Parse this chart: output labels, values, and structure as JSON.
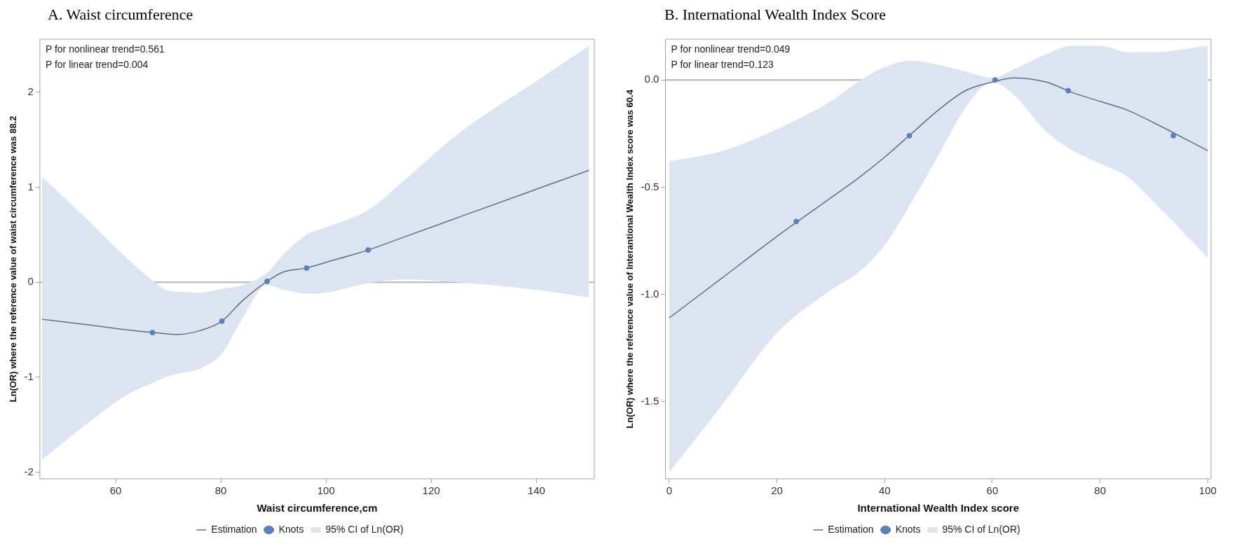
{
  "chart_data": [
    {
      "type": "line",
      "title": "A.  Waist circumference",
      "xlabel": "Waist circumference,cm",
      "ylabel": "Ln(OR) where the reference value of waist circumference was 88.2",
      "xlim": [
        45.6,
        151
      ],
      "ylim": [
        -2.07,
        2.56
      ],
      "xticks": [
        60,
        80,
        100,
        120,
        140
      ],
      "yticks": [
        -2,
        -1,
        0,
        1,
        2
      ],
      "grid": false,
      "legend": "bottom",
      "annotations": [
        "P for nonlinear trend=0.561",
        "P for linear trend=0.004"
      ],
      "ref_lines": [
        {
          "axis": "y",
          "value": 0,
          "color": "#b4b4b4"
        }
      ],
      "series": [
        {
          "name": "Estimation",
          "type": "line",
          "color": "#5f6f82",
          "marker": "none",
          "x": [
            46,
            55,
            62,
            67,
            70,
            72,
            76,
            80.2,
            84,
            88.8,
            92,
            96.3,
            100,
            108,
            115,
            125,
            140,
            150
          ],
          "values": [
            -0.39,
            -0.45,
            -0.5,
            -0.53,
            -0.545,
            -0.55,
            -0.51,
            -0.41,
            -0.2,
            0.01,
            0.11,
            0.15,
            0.21,
            0.34,
            0.48,
            0.68,
            0.98,
            1.18
          ],
          "upper": [
            1.11,
            0.64,
            0.26,
            0.02,
            -0.09,
            -0.1,
            -0.11,
            -0.07,
            -0.03,
            0.1,
            0.3,
            0.5,
            0.58,
            0.76,
            1.08,
            1.56,
            2.12,
            2.49
          ],
          "lower": [
            -1.87,
            -1.47,
            -1.19,
            -1.06,
            -0.99,
            -0.96,
            -0.91,
            -0.75,
            -0.39,
            -0.03,
            -0.08,
            -0.12,
            -0.11,
            -0.01,
            0.03,
            0,
            -0.08,
            -0.16
          ]
        },
        {
          "name": "Knots",
          "type": "scatter",
          "color": "#5b7fbf",
          "marker": "circle",
          "x": [
            67,
            80.2,
            88.8,
            96.3,
            108
          ],
          "values": [
            -0.53,
            -0.41,
            0.01,
            0.15,
            0.34
          ]
        },
        {
          "name": "95% CI of Ln(OR)",
          "type": "area",
          "color": "#dbe4f0"
        }
      ]
    },
    {
      "type": "line",
      "title": "B.  International Wealth Index Score",
      "xlabel": "International Wealth Index score",
      "ylabel": "Ln(OR) where the reference value of Interantional Wealth Index score was 60.4",
      "xlim": [
        -0.7,
        100.6
      ],
      "ylim": [
        -1.86,
        0.19
      ],
      "xticks": [
        0,
        20,
        40,
        60,
        80,
        100
      ],
      "yticks": [
        {
          "value": 0,
          "label": "0.0"
        },
        -0.5,
        {
          "value": -1,
          "label": "-1.0"
        },
        -1.5
      ],
      "grid": false,
      "legend": "bottom",
      "annotations": [
        "P for nonlinear trend=0.049",
        "P for linear trend=0.123"
      ],
      "ref_lines": [
        {
          "axis": "y",
          "value": 0,
          "color": "#b4b4b4"
        }
      ],
      "series": [
        {
          "name": "Estimation",
          "type": "line",
          "color": "#5f6f82",
          "marker": "none",
          "x": [
            0,
            10,
            20,
            30,
            35,
            40,
            45,
            50,
            55,
            60,
            64,
            70,
            75,
            80,
            85,
            90,
            100
          ],
          "values": [
            -1.11,
            -0.92,
            -0.73,
            -0.55,
            -0.46,
            -0.36,
            -0.25,
            -0.14,
            -0.05,
            -0.01,
            0.01,
            -0.01,
            -0.06,
            -0.1,
            -0.14,
            -0.2,
            -0.33
          ],
          "upper": [
            -0.38,
            -0.33,
            -0.23,
            -0.1,
            -0.01,
            0.06,
            0.09,
            0.07,
            0.04,
            0.01,
            0.05,
            0.12,
            0.16,
            0.16,
            0.13,
            0.13,
            0.16
          ],
          "lower": [
            -1.83,
            -1.51,
            -1.18,
            -0.98,
            -0.9,
            -0.77,
            -0.57,
            -0.35,
            -0.13,
            -0.01,
            -0.07,
            -0.24,
            -0.33,
            -0.39,
            -0.45,
            -0.57,
            -0.83
          ]
        },
        {
          "name": "Knots",
          "type": "scatter",
          "color": "#5b7fbf",
          "marker": "circle",
          "x": [
            23.6,
            44.6,
            60.5,
            74.1,
            93.6
          ],
          "values": [
            -0.66,
            -0.26,
            0,
            -0.05,
            -0.26
          ]
        },
        {
          "name": "95% CI of Ln(OR)",
          "type": "area",
          "color": "#dbe4f0"
        }
      ]
    }
  ]
}
